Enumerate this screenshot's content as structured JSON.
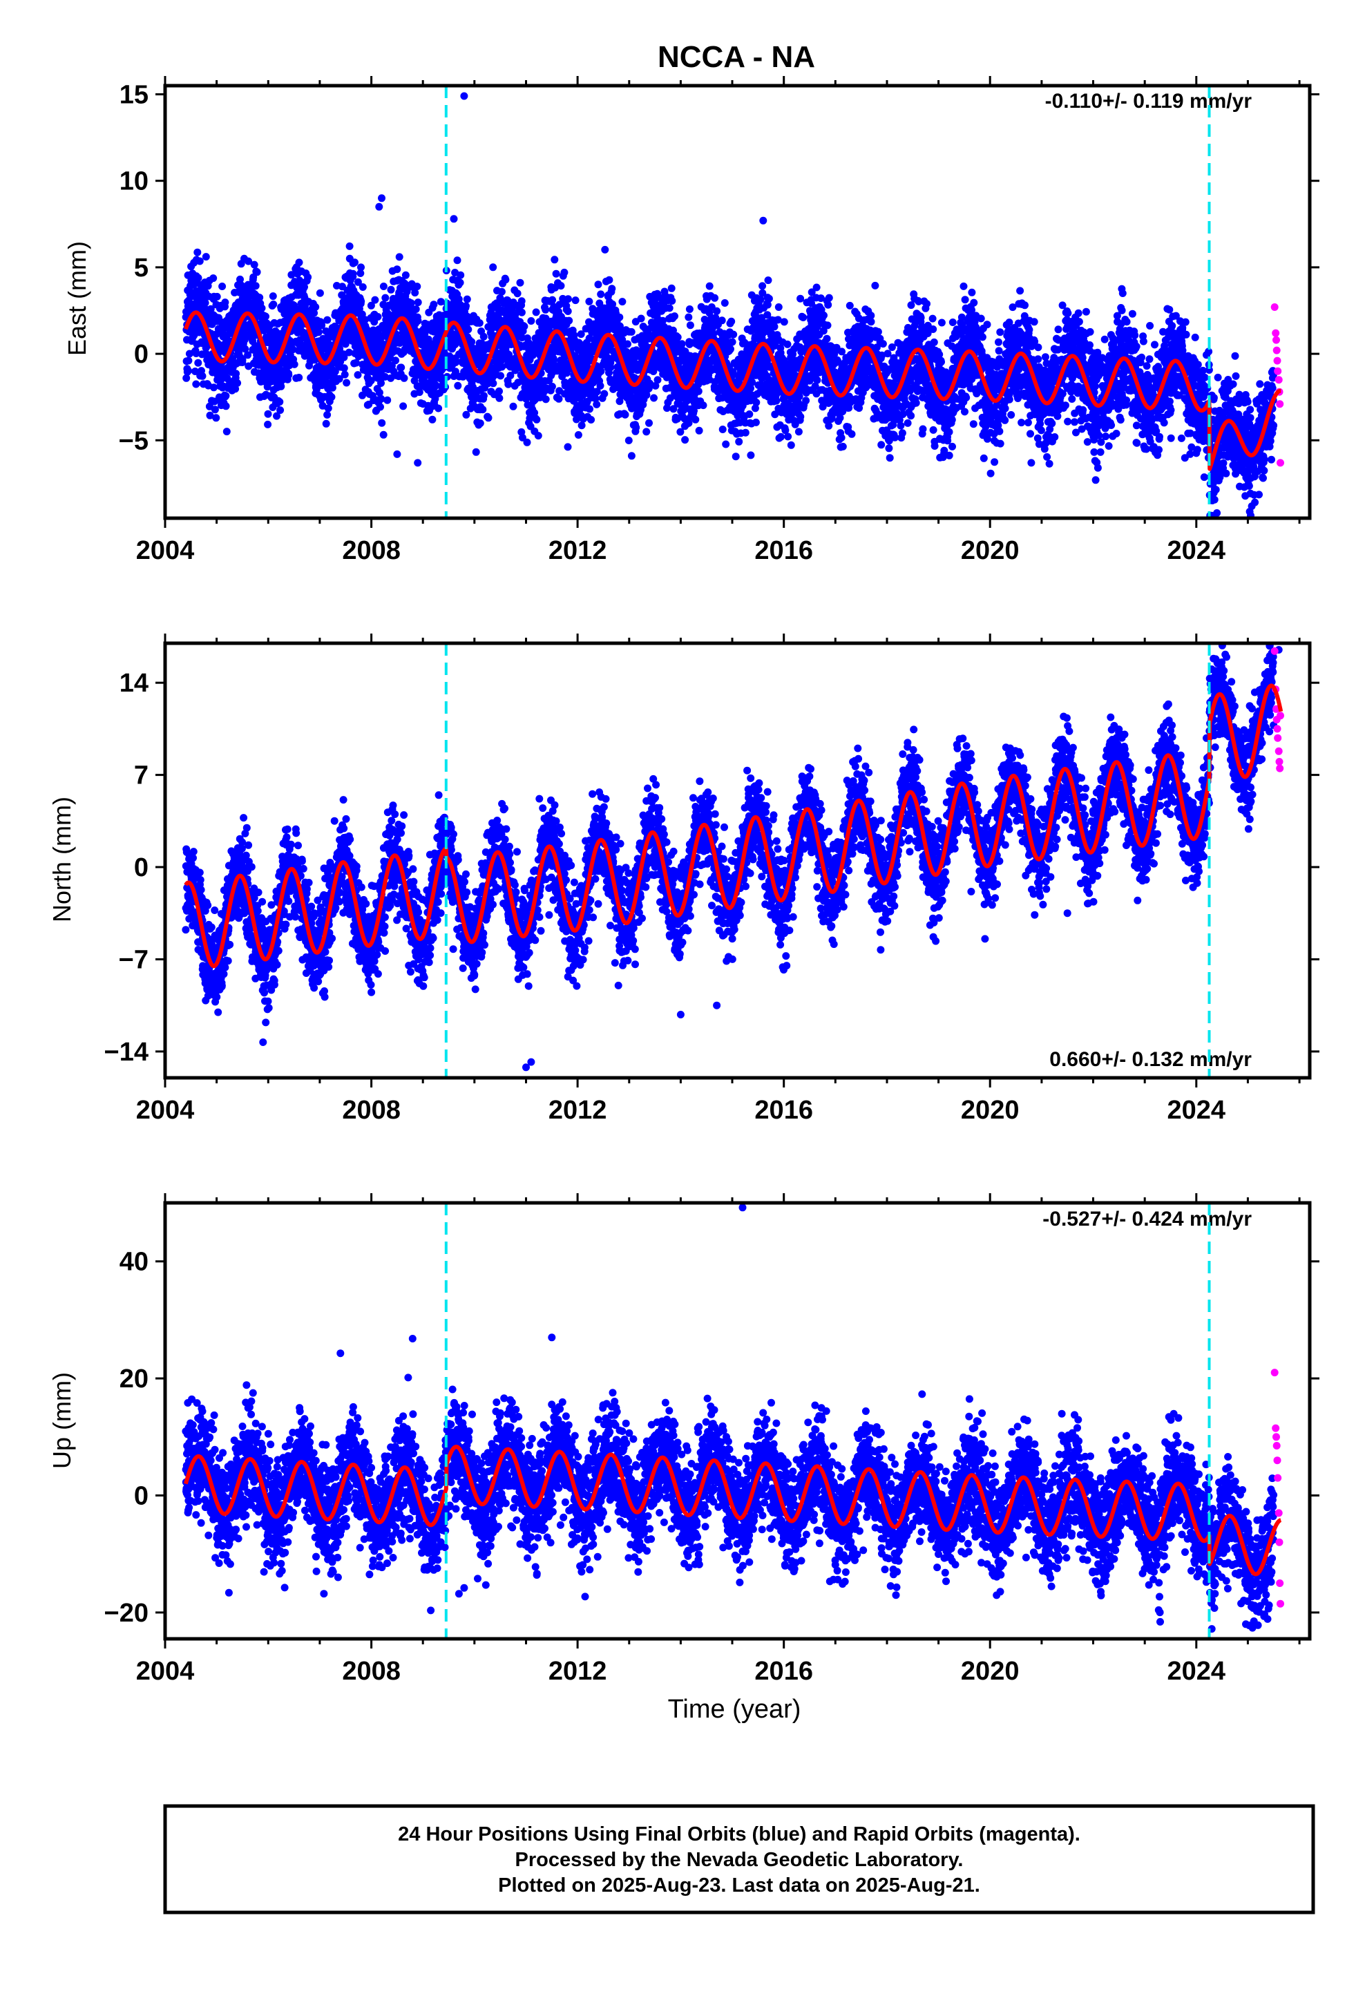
{
  "figure": {
    "title": "NCCA - NA",
    "xlabel": "Time (year)",
    "caption": [
      "24 Hour Positions Using Final Orbits (blue) and Rapid Orbits (magenta).",
      "Processed by the Nevada Geodetic Laboratory.",
      "Plotted on 2025-Aug-23. Last data on 2025-Aug-21."
    ],
    "colors": {
      "final_orbits": "#0000ff",
      "rapid_orbits": "#ff00ff",
      "model": "#ff0000",
      "equipment_change": "#00e5ee",
      "frame": "#000000"
    }
  },
  "chart_data": [
    {
      "type": "scatter",
      "component": "East",
      "ylabel": "East (mm)",
      "annotation": "-0.110+/- 0.119 mm/yr",
      "annotation_position": "top-right",
      "xlim": [
        2004.0,
        2026.2
      ],
      "ylim": [
        -9.5,
        15.5
      ],
      "xticks": [
        2004,
        2008,
        2012,
        2016,
        2020,
        2024
      ],
      "xtick_labels": [
        "2004",
        "2008",
        "2012",
        "2016",
        "2020",
        "2024"
      ],
      "yticks": [
        -5,
        0,
        5,
        10,
        15
      ],
      "ytick_labels": [
        "−5",
        "0",
        "5",
        "10",
        "15"
      ],
      "grid": false,
      "equipment_changes": [
        2009.45,
        2024.25
      ],
      "data_start": 2004.4,
      "data_end": 2025.64,
      "rapid_start": 2025.5,
      "model": {
        "amplitude": 1.4,
        "phase": 0.6,
        "trend_points": [
          [
            2004.4,
            1.0
          ],
          [
            2008.0,
            0.8
          ],
          [
            2012.0,
            -0.2
          ],
          [
            2016.0,
            -0.9
          ],
          [
            2020.0,
            -1.3
          ],
          [
            2024.25,
            -1.9
          ],
          [
            2024.26,
            -5.9
          ],
          [
            2025.64,
            -3.5
          ]
        ],
        "scatter_sigma": 1.5
      },
      "outliers": [
        [
          2009.8,
          14.9
        ],
        [
          2008.2,
          9.0
        ],
        [
          2008.15,
          8.5
        ],
        [
          2009.6,
          7.8
        ],
        [
          2015.6,
          7.7
        ],
        [
          2008.9,
          -6.3
        ],
        [
          2008.5,
          -5.8
        ],
        [
          2020.8,
          -6.3
        ],
        [
          2024.4,
          -9.2
        ]
      ],
      "rapid_points": [
        [
          2025.52,
          2.7
        ],
        [
          2025.54,
          1.2
        ],
        [
          2025.55,
          0.8
        ],
        [
          2025.56,
          0.2
        ],
        [
          2025.57,
          -0.4
        ],
        [
          2025.58,
          -1.0
        ],
        [
          2025.6,
          -1.5
        ],
        [
          2025.61,
          -2.2
        ],
        [
          2025.62,
          -2.9
        ],
        [
          2025.63,
          -6.3
        ]
      ]
    },
    {
      "type": "scatter",
      "component": "North",
      "ylabel": "North (mm)",
      "annotation": "0.660+/- 0.132 mm/yr",
      "annotation_position": "bottom-right",
      "xlim": [
        2004.0,
        2026.2
      ],
      "ylim": [
        -16.0,
        17.0
      ],
      "xticks": [
        2004,
        2008,
        2012,
        2016,
        2020,
        2024
      ],
      "xtick_labels": [
        "2004",
        "2008",
        "2012",
        "2016",
        "2020",
        "2024"
      ],
      "yticks": [
        -14,
        -7,
        0,
        7,
        14
      ],
      "ytick_labels": [
        "−14",
        "−7",
        "0",
        "7",
        "14"
      ],
      "grid": false,
      "equipment_changes": [
        2009.45,
        2024.25
      ],
      "data_start": 2004.4,
      "data_end": 2025.64,
      "rapid_start": 2025.5,
      "model": {
        "amplitude": 3.3,
        "phase": 0.45,
        "trend_points": [
          [
            2004.4,
            -4.5
          ],
          [
            2009.45,
            -1.9
          ],
          [
            2009.46,
            -2.6
          ],
          [
            2012.0,
            -1.5
          ],
          [
            2016.0,
            0.8
          ],
          [
            2020.0,
            3.4
          ],
          [
            2024.25,
            5.6
          ],
          [
            2024.26,
            9.7
          ],
          [
            2025.64,
            10.6
          ]
        ],
        "scatter_sigma": 1.7
      },
      "outliers": [
        [
          2011.0,
          -15.2
        ],
        [
          2011.1,
          -14.8
        ],
        [
          2005.9,
          -13.3
        ],
        [
          2014.0,
          -11.2
        ],
        [
          2014.7,
          -10.5
        ],
        [
          2018.9,
          -5.3
        ],
        [
          2021.5,
          -3.5
        ],
        [
          2025.6,
          16.5
        ]
      ],
      "rapid_points": [
        [
          2025.52,
          16.4
        ],
        [
          2025.54,
          13.5
        ],
        [
          2025.55,
          12.0
        ],
        [
          2025.56,
          11.2
        ],
        [
          2025.57,
          10.5
        ],
        [
          2025.58,
          9.8
        ],
        [
          2025.6,
          8.8
        ],
        [
          2025.61,
          8.0
        ],
        [
          2025.62,
          7.5
        ],
        [
          2025.63,
          11.5
        ]
      ]
    },
    {
      "type": "scatter",
      "component": "Up",
      "ylabel": "Up (mm)",
      "annotation": "-0.527+/- 0.424 mm/yr",
      "annotation_position": "top-right",
      "xlim": [
        2004.0,
        2026.2
      ],
      "ylim": [
        -24.5,
        50.0
      ],
      "xticks": [
        2004,
        2008,
        2012,
        2016,
        2020,
        2024
      ],
      "xtick_labels": [
        "2004",
        "2008",
        "2012",
        "2016",
        "2020",
        "2024"
      ],
      "yticks": [
        -20,
        0,
        20,
        40
      ],
      "ytick_labels": [
        "−20",
        "0",
        "20",
        "40"
      ],
      "grid": false,
      "equipment_changes": [
        2009.45,
        2024.25
      ],
      "data_start": 2004.4,
      "data_end": 2025.64,
      "rapid_start": 2025.5,
      "model": {
        "amplitude": 4.8,
        "phase": 0.65,
        "trend_points": [
          [
            2004.4,
            2.0
          ],
          [
            2009.45,
            -0.4
          ],
          [
            2009.46,
            3.6
          ],
          [
            2012.0,
            2.5
          ],
          [
            2016.0,
            0.5
          ],
          [
            2020.0,
            -1.5
          ],
          [
            2024.25,
            -3.0
          ],
          [
            2024.26,
            -8.0
          ],
          [
            2025.64,
            -9.0
          ]
        ],
        "scatter_sigma": 4.5
      },
      "outliers": [
        [
          2015.2,
          49.2
        ],
        [
          2011.5,
          27.0
        ],
        [
          2008.8,
          26.8
        ],
        [
          2007.4,
          24.3
        ],
        [
          2009.8,
          -15.8
        ],
        [
          2009.7,
          -16.8
        ],
        [
          2023.3,
          -21.6
        ],
        [
          2024.3,
          -22.8
        ]
      ],
      "rapid_points": [
        [
          2025.52,
          21.0
        ],
        [
          2025.54,
          11.5
        ],
        [
          2025.55,
          10.0
        ],
        [
          2025.56,
          8.5
        ],
        [
          2025.57,
          6.0
        ],
        [
          2025.58,
          3.0
        ],
        [
          2025.6,
          -3.0
        ],
        [
          2025.61,
          -8.0
        ],
        [
          2025.62,
          -15.0
        ],
        [
          2025.63,
          -18.5
        ]
      ]
    }
  ]
}
